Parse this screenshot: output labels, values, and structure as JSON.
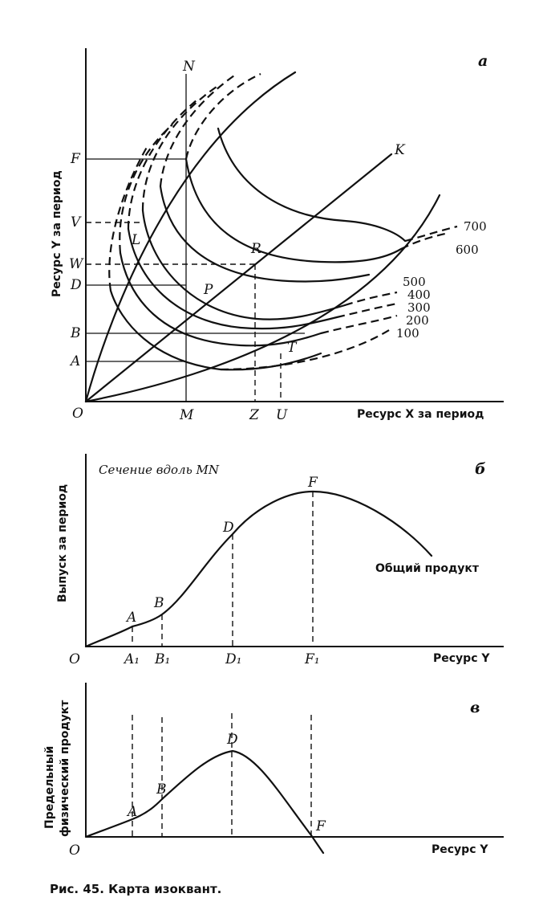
{
  "panel_a": {
    "letter": "а",
    "y_axis_title": "Ресурс Y за период",
    "x_axis_title": "Ресурс X за период",
    "origin": "O",
    "y_ticks": [
      "F",
      "V",
      "W",
      "D",
      "B",
      "A"
    ],
    "x_ticks": [
      "M",
      "Z",
      "U"
    ],
    "vertical_line_label": "N",
    "ray_label": "K",
    "points": [
      "L",
      "P",
      "R",
      "T"
    ],
    "isoquant_labels": [
      "700",
      "600",
      "500",
      "400",
      "300",
      "200",
      "100"
    ]
  },
  "panel_b": {
    "letter": "б",
    "y_axis_title": "Выпуск за период",
    "x_axis_title": "Ресурс Y",
    "origin": "O",
    "subtitle": "Сечение вдоль MN",
    "curve_label": "Общий продукт",
    "points": [
      "A",
      "B",
      "D",
      "F"
    ],
    "x_ticks": [
      "A₁",
      "B₁",
      "D₁",
      "F₁"
    ]
  },
  "panel_c": {
    "letter": "в",
    "y_axis_title_1": "Предельный",
    "y_axis_title_2": "физический продукт",
    "x_axis_title": "Ресурс Y",
    "origin": "O",
    "points": [
      "A",
      "B",
      "D",
      "F"
    ]
  },
  "caption": "Рис. 45. Карта изоквант."
}
